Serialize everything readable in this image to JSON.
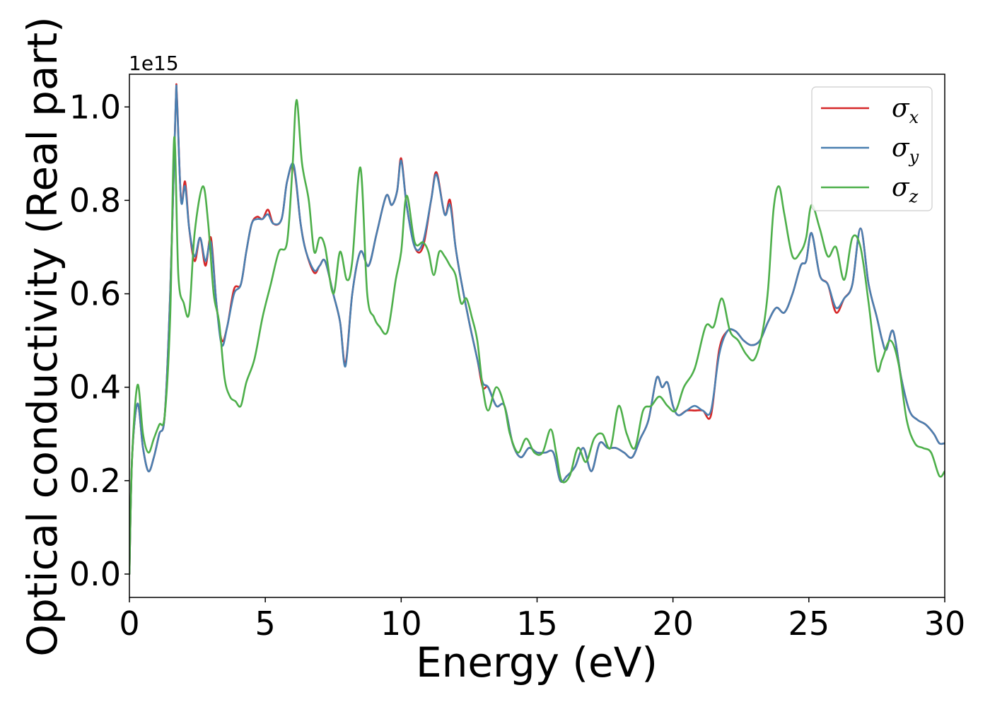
{
  "chart_data": {
    "type": "line",
    "xlabel": "Energy (eV)",
    "ylabel": "Optical conductivity (Real part)",
    "y_offset_text": "1e15",
    "xlim": [
      0,
      30
    ],
    "ylim": [
      -0.05,
      1.07
    ],
    "x_ticks": [
      0,
      5,
      10,
      15,
      20,
      25,
      30
    ],
    "x_tick_labels": [
      "0",
      "5",
      "10",
      "15",
      "20",
      "25",
      "30"
    ],
    "y_ticks": [
      0.0,
      0.2,
      0.4,
      0.6,
      0.8,
      1.0
    ],
    "y_tick_labels": [
      "0.0",
      "0.2",
      "0.4",
      "0.6",
      "0.8",
      "1.0"
    ],
    "grid": false,
    "legend_position": "top-right",
    "series": [
      {
        "name": "σx",
        "legend_symbol": "σ",
        "legend_subscript": "x",
        "color": "#d62728",
        "x": [
          0,
          0.1,
          0.3,
          0.5,
          0.7,
          0.9,
          1.1,
          1.3,
          1.5,
          1.7,
          1.75,
          1.9,
          2.05,
          2.2,
          2.4,
          2.6,
          2.8,
          3.0,
          3.2,
          3.4,
          3.6,
          3.85,
          4.1,
          4.3,
          4.5,
          4.7,
          4.9,
          5.1,
          5.3,
          5.6,
          5.8,
          6.05,
          6.3,
          6.5,
          6.8,
          7.0,
          7.2,
          7.5,
          7.75,
          7.95,
          8.2,
          8.5,
          8.8,
          9.1,
          9.45,
          9.65,
          9.85,
          10.0,
          10.2,
          10.5,
          10.8,
          11.1,
          11.3,
          11.6,
          11.8,
          12.0,
          12.2,
          12.5,
          12.8,
          13.0,
          13.2,
          13.5,
          13.8,
          14.1,
          14.4,
          14.7,
          15.0,
          15.3,
          15.6,
          15.85,
          16.1,
          16.4,
          16.7,
          17.0,
          17.3,
          17.6,
          17.9,
          18.2,
          18.5,
          18.8,
          19.1,
          19.4,
          19.6,
          19.8,
          20.0,
          20.2,
          20.5,
          20.8,
          21.1,
          21.4,
          21.7,
          22.0,
          22.3,
          22.6,
          22.9,
          23.2,
          23.5,
          23.8,
          24.1,
          24.4,
          24.7,
          24.9,
          25.1,
          25.4,
          25.7,
          26.0,
          26.3,
          26.6,
          26.9,
          27.2,
          27.5,
          27.7,
          27.85,
          28.1,
          28.4,
          28.7,
          29.0,
          29.3,
          29.6,
          29.8,
          30.0
        ],
        "y": [
          0.0,
          0.25,
          0.365,
          0.27,
          0.22,
          0.25,
          0.3,
          0.34,
          0.6,
          1.0,
          1.02,
          0.8,
          0.84,
          0.74,
          0.67,
          0.72,
          0.66,
          0.72,
          0.58,
          0.5,
          0.53,
          0.61,
          0.62,
          0.69,
          0.75,
          0.765,
          0.76,
          0.78,
          0.75,
          0.76,
          0.84,
          0.87,
          0.75,
          0.69,
          0.645,
          0.66,
          0.67,
          0.6,
          0.54,
          0.45,
          0.6,
          0.69,
          0.66,
          0.73,
          0.81,
          0.79,
          0.82,
          0.89,
          0.79,
          0.7,
          0.7,
          0.8,
          0.86,
          0.77,
          0.8,
          0.7,
          0.63,
          0.54,
          0.46,
          0.4,
          0.4,
          0.36,
          0.36,
          0.28,
          0.25,
          0.27,
          0.26,
          0.26,
          0.26,
          0.2,
          0.21,
          0.23,
          0.27,
          0.22,
          0.28,
          0.27,
          0.27,
          0.26,
          0.25,
          0.29,
          0.33,
          0.42,
          0.4,
          0.41,
          0.36,
          0.34,
          0.35,
          0.35,
          0.35,
          0.34,
          0.48,
          0.52,
          0.52,
          0.5,
          0.49,
          0.5,
          0.54,
          0.57,
          0.56,
          0.6,
          0.66,
          0.67,
          0.73,
          0.64,
          0.62,
          0.56,
          0.59,
          0.62,
          0.74,
          0.62,
          0.55,
          0.5,
          0.48,
          0.52,
          0.42,
          0.35,
          0.33,
          0.32,
          0.3,
          0.28,
          0.28
        ]
      },
      {
        "name": "σy",
        "legend_symbol": "σ",
        "legend_subscript": "y",
        "color": "#4a7fb0",
        "x": [
          0,
          0.1,
          0.3,
          0.5,
          0.7,
          0.9,
          1.1,
          1.3,
          1.5,
          1.7,
          1.75,
          1.9,
          2.05,
          2.2,
          2.4,
          2.6,
          2.8,
          3.0,
          3.2,
          3.4,
          3.6,
          3.85,
          4.1,
          4.3,
          4.5,
          4.7,
          4.9,
          5.1,
          5.3,
          5.6,
          5.8,
          6.05,
          6.3,
          6.5,
          6.8,
          7.0,
          7.2,
          7.5,
          7.75,
          7.95,
          8.2,
          8.5,
          8.8,
          9.1,
          9.45,
          9.65,
          9.85,
          10.0,
          10.2,
          10.5,
          10.8,
          11.1,
          11.3,
          11.6,
          11.8,
          12.0,
          12.2,
          12.5,
          12.8,
          13.0,
          13.2,
          13.5,
          13.8,
          14.1,
          14.4,
          14.7,
          15.0,
          15.3,
          15.6,
          15.85,
          16.1,
          16.4,
          16.7,
          17.0,
          17.3,
          17.6,
          17.9,
          18.2,
          18.5,
          18.8,
          19.1,
          19.4,
          19.6,
          19.8,
          20.0,
          20.2,
          20.5,
          20.8,
          21.1,
          21.4,
          21.7,
          22.0,
          22.3,
          22.6,
          22.9,
          23.2,
          23.5,
          23.8,
          24.1,
          24.4,
          24.7,
          24.9,
          25.1,
          25.4,
          25.7,
          26.0,
          26.3,
          26.6,
          26.9,
          27.2,
          27.5,
          27.7,
          27.85,
          28.1,
          28.4,
          28.7,
          29.0,
          29.3,
          29.6,
          29.8,
          30.0
        ],
        "y": [
          0.0,
          0.25,
          0.365,
          0.27,
          0.22,
          0.25,
          0.3,
          0.34,
          0.6,
          1.0,
          1.015,
          0.8,
          0.83,
          0.74,
          0.68,
          0.72,
          0.67,
          0.71,
          0.58,
          0.49,
          0.53,
          0.6,
          0.62,
          0.69,
          0.75,
          0.76,
          0.76,
          0.77,
          0.75,
          0.76,
          0.84,
          0.875,
          0.75,
          0.69,
          0.65,
          0.66,
          0.67,
          0.6,
          0.54,
          0.445,
          0.6,
          0.69,
          0.66,
          0.73,
          0.81,
          0.79,
          0.82,
          0.885,
          0.79,
          0.7,
          0.71,
          0.8,
          0.855,
          0.77,
          0.79,
          0.7,
          0.63,
          0.54,
          0.46,
          0.41,
          0.4,
          0.36,
          0.36,
          0.28,
          0.25,
          0.27,
          0.26,
          0.26,
          0.26,
          0.2,
          0.21,
          0.23,
          0.27,
          0.22,
          0.28,
          0.27,
          0.27,
          0.26,
          0.25,
          0.29,
          0.33,
          0.42,
          0.4,
          0.41,
          0.36,
          0.34,
          0.35,
          0.36,
          0.35,
          0.35,
          0.47,
          0.52,
          0.52,
          0.5,
          0.49,
          0.5,
          0.54,
          0.57,
          0.56,
          0.6,
          0.66,
          0.67,
          0.73,
          0.64,
          0.62,
          0.57,
          0.59,
          0.62,
          0.74,
          0.62,
          0.55,
          0.5,
          0.48,
          0.52,
          0.42,
          0.35,
          0.33,
          0.32,
          0.3,
          0.28,
          0.28
        ]
      },
      {
        "name": "σz",
        "legend_symbol": "σ",
        "legend_subscript": "z",
        "color": "#4daf4a",
        "x": [
          0,
          0.1,
          0.3,
          0.5,
          0.7,
          0.9,
          1.1,
          1.3,
          1.5,
          1.65,
          1.8,
          2.0,
          2.2,
          2.4,
          2.7,
          2.9,
          3.1,
          3.3,
          3.5,
          3.7,
          3.9,
          4.1,
          4.3,
          4.6,
          4.9,
          5.2,
          5.5,
          5.8,
          6.0,
          6.15,
          6.35,
          6.6,
          6.8,
          7.0,
          7.2,
          7.5,
          7.75,
          8.0,
          8.2,
          8.5,
          8.75,
          9.0,
          9.2,
          9.5,
          9.8,
          10.0,
          10.2,
          10.5,
          10.8,
          11.0,
          11.2,
          11.4,
          11.6,
          11.8,
          12.0,
          12.2,
          12.4,
          12.6,
          12.8,
          13.0,
          13.2,
          13.5,
          13.8,
          14.0,
          14.3,
          14.6,
          14.9,
          15.2,
          15.5,
          15.7,
          15.9,
          16.2,
          16.5,
          16.8,
          17.1,
          17.4,
          17.7,
          18.0,
          18.3,
          18.6,
          18.9,
          19.2,
          19.5,
          19.8,
          20.1,
          20.4,
          20.8,
          21.2,
          21.5,
          21.8,
          22.1,
          22.4,
          22.7,
          23.0,
          23.3,
          23.5,
          23.7,
          23.9,
          24.1,
          24.4,
          24.7,
          24.9,
          25.1,
          25.4,
          25.7,
          26.0,
          26.3,
          26.6,
          26.9,
          27.2,
          27.5,
          27.7,
          28.0,
          28.3,
          28.6,
          28.9,
          29.2,
          29.5,
          29.8,
          30.0
        ],
        "y": [
          0.0,
          0.25,
          0.405,
          0.3,
          0.26,
          0.29,
          0.32,
          0.34,
          0.55,
          0.935,
          0.64,
          0.58,
          0.56,
          0.73,
          0.83,
          0.75,
          0.6,
          0.54,
          0.42,
          0.38,
          0.37,
          0.36,
          0.41,
          0.46,
          0.55,
          0.62,
          0.69,
          0.71,
          0.87,
          1.015,
          0.88,
          0.8,
          0.69,
          0.72,
          0.7,
          0.6,
          0.69,
          0.63,
          0.67,
          0.87,
          0.6,
          0.55,
          0.53,
          0.52,
          0.63,
          0.69,
          0.81,
          0.71,
          0.71,
          0.69,
          0.64,
          0.69,
          0.68,
          0.66,
          0.64,
          0.58,
          0.59,
          0.55,
          0.5,
          0.4,
          0.35,
          0.4,
          0.36,
          0.3,
          0.26,
          0.29,
          0.26,
          0.26,
          0.31,
          0.26,
          0.2,
          0.21,
          0.27,
          0.24,
          0.29,
          0.3,
          0.27,
          0.36,
          0.3,
          0.27,
          0.35,
          0.36,
          0.38,
          0.36,
          0.35,
          0.4,
          0.44,
          0.53,
          0.53,
          0.59,
          0.52,
          0.5,
          0.47,
          0.46,
          0.52,
          0.61,
          0.78,
          0.83,
          0.77,
          0.68,
          0.69,
          0.72,
          0.79,
          0.74,
          0.68,
          0.7,
          0.63,
          0.72,
          0.7,
          0.58,
          0.44,
          0.46,
          0.5,
          0.45,
          0.33,
          0.28,
          0.27,
          0.26,
          0.21,
          0.22
        ]
      }
    ]
  }
}
